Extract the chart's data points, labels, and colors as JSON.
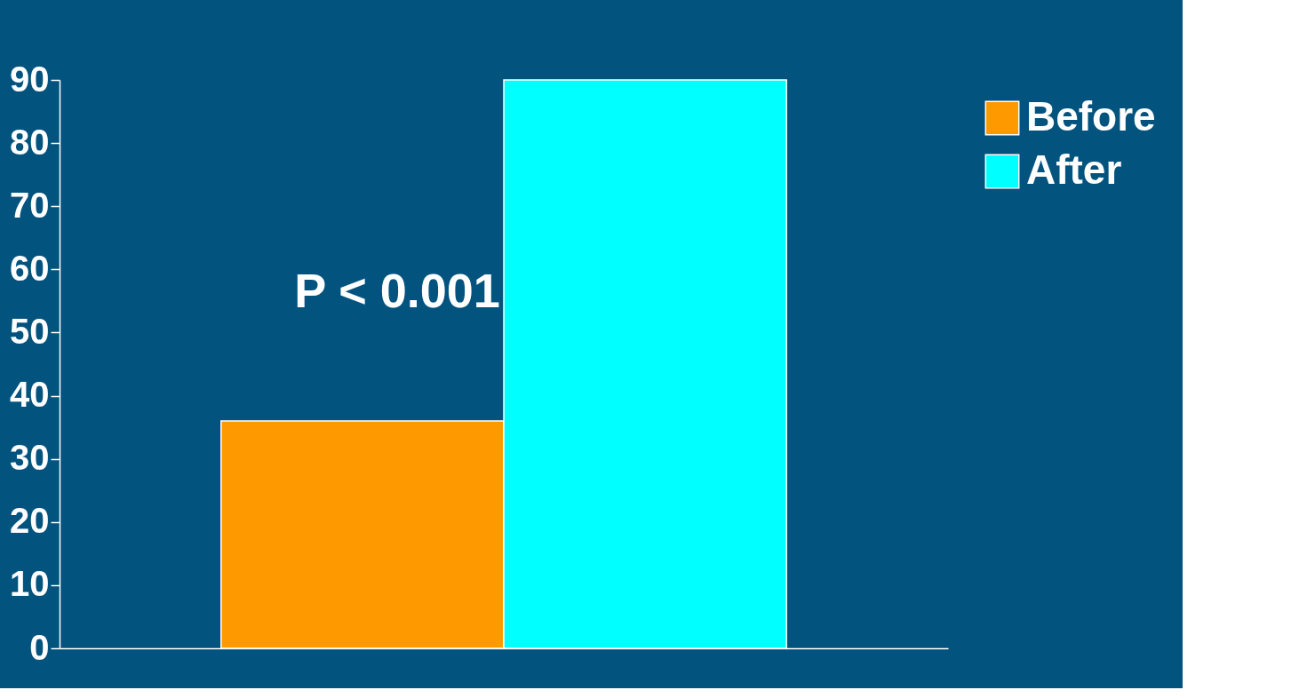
{
  "chart_data": {
    "type": "bar",
    "categories": [
      null
    ],
    "series": [
      {
        "name": "Before",
        "color": "#ff9900",
        "values": [
          36
        ]
      },
      {
        "name": "After",
        "color": "#00ffff",
        "values": [
          90
        ]
      }
    ],
    "ylim": [
      0,
      90
    ],
    "yticks": [
      0,
      10,
      20,
      30,
      40,
      50,
      60,
      70,
      80,
      90
    ],
    "grid": false,
    "legend": "right",
    "tick_labels": "y",
    "annotations": [
      "P < 0.001"
    ]
  }
}
